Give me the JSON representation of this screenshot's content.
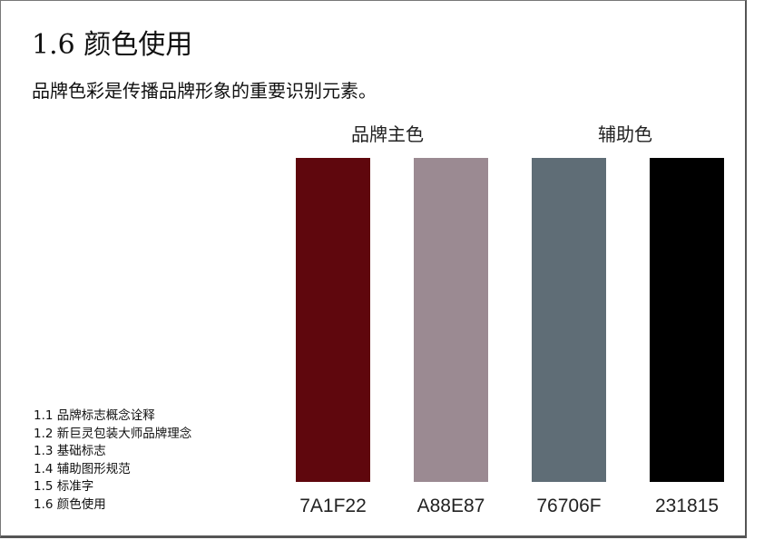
{
  "page": {
    "title": "1.6 颜色使用",
    "subtitle": "品牌色彩是传播品牌形象的重要识别元素。"
  },
  "groups": {
    "primary": "品牌主色",
    "secondary": "辅助色"
  },
  "swatches": [
    {
      "code": "7A1F22",
      "color": "#5f070d"
    },
    {
      "code": "A88E87",
      "color": "#9b8a92"
    },
    {
      "code": "76706F",
      "color": "#5f6d76"
    },
    {
      "code": "231815",
      "color": "#000000"
    }
  ],
  "nav": [
    "1.1 品牌标志概念诠释",
    "1.2 新巨灵包装大师品牌理念",
    "1.3 基础标志",
    "1.4 辅助图形规范",
    "1.5 标准字",
    "1.6 颜色使用"
  ]
}
